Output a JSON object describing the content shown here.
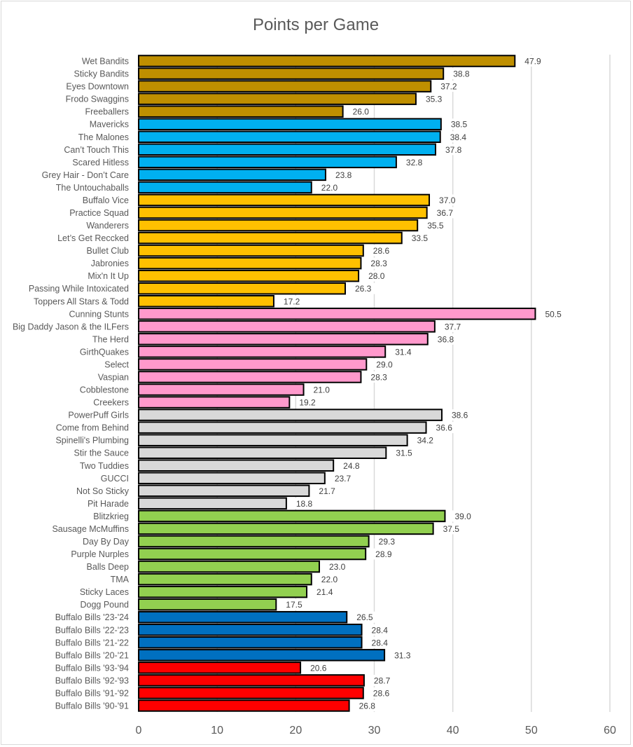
{
  "chart_data": {
    "type": "bar",
    "orientation": "horizontal",
    "title": "Points per Game",
    "xlabel": "",
    "ylabel": "",
    "xlim": [
      0,
      60
    ],
    "x_ticks": [
      0,
      10,
      20,
      30,
      40,
      50,
      60
    ],
    "grid": "vertical",
    "legend": "none",
    "data_labels": true,
    "group_colors": {
      "gold": "#bf8f00",
      "sky": "#00b0f0",
      "amber": "#ffc000",
      "pink": "#ff99cc",
      "grey": "#d9d9d9",
      "green": "#92d050",
      "bills_blue": "#0070c0",
      "bills_red": "#ff0000"
    },
    "categories": [
      "Wet Bandits",
      "Sticky Bandits",
      "Eyes Downtown",
      "Frodo Swaggins",
      "Freeballers",
      "Mavericks",
      "The Malones",
      "Can’t Touch This",
      "Scared Hitless",
      "Grey Hair - Don’t Care",
      "The Untouchaballs",
      "Buffalo Vice",
      "Practice Squad",
      "Wanderers",
      "Let’s Get Reccked",
      "Bullet Club",
      "Jabronies",
      "Mix'n It Up",
      "Passing While Intoxicated",
      "Toppers All Stars & Todd",
      "Cunning Stunts",
      "Big Daddy Jason & the ILFers",
      "The Herd",
      "GirthQuakes",
      "Select",
      "Vaspian",
      "Cobblestone",
      "Creekers",
      "PowerPuff Girls",
      "Come from Behind",
      "Spinelli's Plumbing",
      "Stir the Sauce",
      "Two Tuddies",
      "GUCCI",
      "Not So Sticky",
      "Pit Harade",
      "Blitzkrieg",
      "Sausage McMuffins",
      "Day By Day",
      "Purple Nurples",
      "Balls Deep",
      "TMA",
      "Sticky Laces",
      "Dogg Pound",
      "Buffalo Bills '23-'24",
      "Buffalo Bills '22-'23",
      "Buffalo Bills '21-'22",
      "Buffalo Bills '20-'21",
      "Buffalo Bills '93-'94",
      "Buffalo Bills '92-'93",
      "Buffalo Bills '91-'92",
      "Buffalo Bills '90-'91"
    ],
    "values": [
      47.9,
      38.8,
      37.2,
      35.3,
      26.0,
      38.5,
      38.4,
      37.8,
      32.8,
      23.8,
      22.0,
      37.0,
      36.7,
      35.5,
      33.5,
      28.6,
      28.3,
      28.0,
      26.3,
      17.2,
      50.5,
      37.7,
      36.8,
      31.4,
      29.0,
      28.3,
      21.0,
      19.2,
      38.6,
      36.6,
      34.2,
      31.5,
      24.8,
      23.7,
      21.7,
      18.8,
      39.0,
      37.5,
      29.3,
      28.9,
      23.0,
      22.0,
      21.4,
      17.5,
      26.5,
      28.4,
      28.4,
      31.3,
      20.6,
      28.7,
      28.6,
      26.8
    ],
    "value_labels": [
      "47.9",
      "38.8",
      "37.2",
      "35.3",
      "26.0",
      "38.5",
      "38.4",
      "37.8",
      "32.8",
      "23.8",
      "22.0",
      "37.0",
      "36.7",
      "35.5",
      "33.5",
      "28.6",
      "28.3",
      "28.0",
      "26.3",
      "17.2",
      "50.5",
      "37.7",
      "36.8",
      "31.4",
      "29.0",
      "28.3",
      "21.0",
      "19.2",
      "38.6",
      "36.6",
      "34.2",
      "31.5",
      "24.8",
      "23.7",
      "21.7",
      "18.8",
      "39.0",
      "37.5",
      "29.3",
      "28.9",
      "23.0",
      "22.0",
      "21.4",
      "17.5",
      "26.5",
      "28.4",
      "28.4",
      "31.3",
      "20.6",
      "28.7",
      "28.6",
      "26.8"
    ],
    "color_groups": [
      "gold",
      "gold",
      "gold",
      "gold",
      "gold",
      "sky",
      "sky",
      "sky",
      "sky",
      "sky",
      "sky",
      "amber",
      "amber",
      "amber",
      "amber",
      "amber",
      "amber",
      "amber",
      "amber",
      "amber",
      "pink",
      "pink",
      "pink",
      "pink",
      "pink",
      "pink",
      "pink",
      "pink",
      "grey",
      "grey",
      "grey",
      "grey",
      "grey",
      "grey",
      "grey",
      "grey",
      "green",
      "green",
      "green",
      "green",
      "green",
      "green",
      "green",
      "green",
      "bills_blue",
      "bills_blue",
      "bills_blue",
      "bills_blue",
      "bills_red",
      "bills_red",
      "bills_red",
      "bills_red"
    ]
  }
}
